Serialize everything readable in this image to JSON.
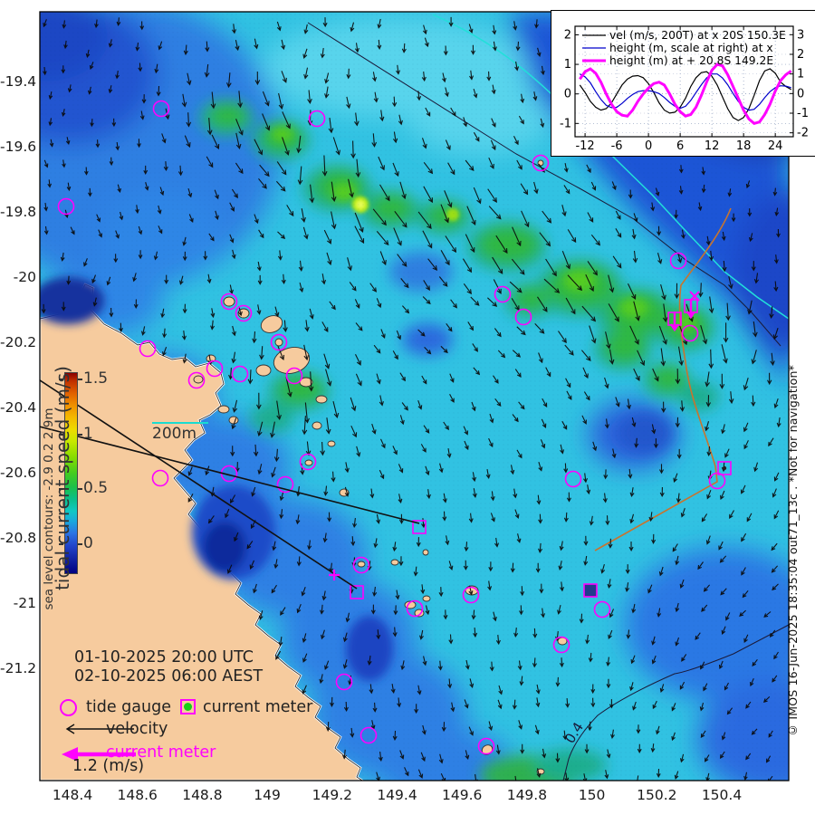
{
  "map": {
    "x_ticks": [
      "148.4",
      "148.6",
      "148.8",
      "149",
      "149.2",
      "149.4",
      "149.6",
      "149.8",
      "150",
      "150.2",
      "150.4"
    ],
    "y_ticks": [
      "-19.4",
      "-19.6",
      "-19.8",
      "-20",
      "-20.2",
      "-20.4",
      "-20.6",
      "-20.8",
      "-21",
      "-21.2"
    ],
    "contour_label": "0.4",
    "tide_gauges": [
      [
        178,
        120
      ],
      [
        350,
        131
      ],
      [
        73,
        228
      ],
      [
        597,
        180
      ],
      [
        749,
        288
      ],
      [
        555,
        325
      ],
      [
        578,
        350
      ],
      [
        762,
        368
      ],
      [
        253,
        333
      ],
      [
        269,
        346
      ],
      [
        308,
        378
      ],
      [
        163,
        385
      ],
      [
        237,
        407
      ],
      [
        265,
        413
      ],
      [
        325,
        415
      ],
      [
        217,
        420
      ],
      [
        340,
        510
      ],
      [
        177,
        528
      ],
      [
        253,
        523
      ],
      [
        315,
        535
      ],
      [
        633,
        529
      ],
      [
        792,
        531
      ],
      [
        399,
        624
      ],
      [
        458,
        672
      ],
      [
        520,
        657
      ],
      [
        665,
        673
      ],
      [
        620,
        712
      ],
      [
        380,
        753
      ],
      [
        407,
        812
      ],
      [
        537,
        824
      ]
    ],
    "current_meters": [
      [
        763,
        338
      ],
      [
        745,
        352
      ],
      [
        800,
        517
      ],
      [
        652,
        652
      ],
      [
        463,
        582
      ],
      [
        394,
        654
      ]
    ],
    "current_meter_types": [
      "magenta-arrow",
      "magenta-arrow",
      "dot",
      "filled",
      "black-arrow",
      "black-arrow"
    ],
    "plus_markers": [
      [
        369,
        635
      ]
    ],
    "x_markers": [
      [
        767,
        327
      ]
    ]
  },
  "colorbar": {
    "title": "tidal current speed (m/s)",
    "side_label": "sea level contours: -2.9 0.2 2.9m",
    "tick_labels": [
      "1.5",
      "1",
      "0.5",
      "0"
    ],
    "tick_values": [
      1.5,
      1,
      0.5,
      0
    ]
  },
  "depth_legend": {
    "label": "200m"
  },
  "timestamp": {
    "utc": "01-10-2025 20:00 UTC",
    "local": "02-10-2025 06:00 AEST"
  },
  "legend": {
    "tide_gauge": "tide gauge",
    "current_meter": "current meter",
    "velocity": "velocity",
    "current_meter_arrow": "current meter",
    "scale": "1.2 (m/s)"
  },
  "watermark": "© IMOS 16-Jun-2025 18:35:04 out71_13c . *Not for navigation*",
  "colors": {
    "magenta": "#ff00ff",
    "meter_green": "#17cf17",
    "contour_cyan": "#21e0da",
    "boundary_orange": "#c8742e"
  },
  "chart_data": {
    "type": "line",
    "x_ticks": [
      -12,
      -6,
      0,
      6,
      12,
      18,
      24
    ],
    "left_yticks": [
      -1,
      0,
      1,
      2
    ],
    "right_yticks": [
      -2,
      -1,
      0,
      1,
      2,
      3
    ],
    "xlim": [
      -13.9,
      27.4
    ],
    "left_ylim": [
      -1.45,
      2.29
    ],
    "right_ylim": [
      -2.2,
      3.43
    ],
    "grid": true,
    "legend_position": "top-left",
    "x": [
      -13,
      -12,
      -11,
      -10,
      -9,
      -8,
      -7,
      -6,
      -5,
      -4,
      -3,
      -2,
      -1,
      0,
      1,
      2,
      3,
      4,
      5,
      6,
      7,
      8,
      9,
      10,
      11,
      12,
      13,
      14,
      15,
      16,
      17,
      18,
      19,
      20,
      21,
      22,
      23,
      24,
      25,
      26,
      27
    ],
    "series": [
      {
        "name": "vel (m/s, 200T) at x 20S 150.3E",
        "color": "#000000",
        "width": 1.2,
        "axis": "left",
        "values": [
          0.3,
          0.05,
          -0.25,
          -0.45,
          -0.55,
          -0.5,
          -0.3,
          0.0,
          0.3,
          0.5,
          0.6,
          0.62,
          0.55,
          0.35,
          0.05,
          -0.3,
          -0.55,
          -0.65,
          -0.62,
          -0.45,
          -0.15,
          0.25,
          0.55,
          0.72,
          0.75,
          0.6,
          0.3,
          -0.1,
          -0.5,
          -0.8,
          -0.9,
          -0.8,
          -0.5,
          -0.05,
          0.45,
          0.78,
          0.85,
          0.7,
          0.4,
          0.25,
          0.15
        ]
      },
      {
        "name": "height (m, scale at right) at x",
        "color": "#0000cc",
        "width": 1.2,
        "axis": "right",
        "values": [
          1.0,
          0.85,
          0.55,
          0.1,
          -0.3,
          -0.6,
          -0.72,
          -0.7,
          -0.5,
          -0.25,
          -0.05,
          0.1,
          0.15,
          0.15,
          0.1,
          0.0,
          -0.2,
          -0.45,
          -0.65,
          -0.75,
          -0.65,
          -0.35,
          0.05,
          0.45,
          0.8,
          1.0,
          1.0,
          0.8,
          0.45,
          0.0,
          -0.4,
          -0.7,
          -0.85,
          -0.8,
          -0.55,
          -0.2,
          0.1,
          0.3,
          0.4,
          0.38,
          0.3
        ]
      },
      {
        "name": "height (m) at + 20.8S 149.2E",
        "color": "#ff00ff",
        "width": 3,
        "axis": "left",
        "values": [
          0.5,
          0.75,
          0.85,
          0.7,
          0.4,
          0.0,
          -0.35,
          -0.6,
          -0.72,
          -0.75,
          -0.55,
          -0.25,
          0.0,
          0.2,
          0.35,
          0.4,
          0.3,
          0.0,
          -0.35,
          -0.6,
          -0.75,
          -0.7,
          -0.45,
          -0.05,
          0.4,
          0.8,
          1.0,
          0.95,
          0.65,
          0.25,
          -0.15,
          -0.55,
          -0.85,
          -1.0,
          -0.95,
          -0.7,
          -0.35,
          0.1,
          0.45,
          0.65,
          0.78
        ]
      }
    ]
  }
}
